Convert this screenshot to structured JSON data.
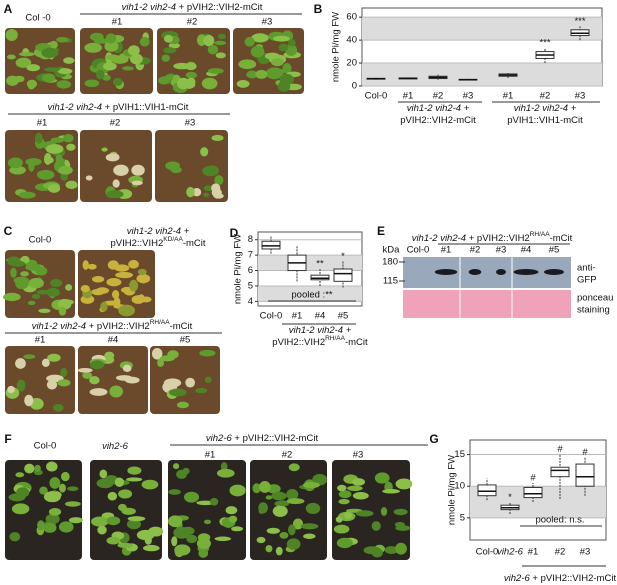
{
  "panels": {
    "A": {
      "label": "A",
      "col0": "Col -0",
      "row1": {
        "genotype": "vih1-2 vih2-4",
        "construct": " + pVIH2::VIH2-mCit",
        "lines": [
          "#1",
          "#2",
          "#3"
        ]
      },
      "row2": {
        "genotype": "vih1-2 vih2-4",
        "construct": " + pVIH1::VIH1-mCit",
        "lines": [
          "#1",
          "#2",
          "#3"
        ]
      }
    },
    "C": {
      "label": "C",
      "col0": "Col-0",
      "kd": {
        "genotype": "vih1-2 vih2-4 +",
        "construct": "pVIH2::VIH2",
        "sup": "KD/AA",
        "suffix": "-mCit"
      },
      "row2": {
        "genotype": "vih1-2 vih2-4",
        "construct": " + pVIH2::VIH2",
        "sup": "RH/AA",
        "suffix": "-mCit",
        "lines": [
          "#1",
          "#4",
          "#5"
        ]
      }
    },
    "E": {
      "label": "E",
      "genotype": "vih1-2 vih2-4",
      "construct": " + pVIH2::VIH2",
      "sup": "RH/AA",
      "suffix": "-mCit",
      "kda": "kDa",
      "lanes": [
        "Col-0",
        "#1",
        "#2",
        "#3",
        "#4",
        "#5"
      ],
      "markers": [
        "180",
        "115"
      ],
      "blots": [
        [
          "anti-",
          "GFP"
        ],
        [
          "ponceau",
          "staining"
        ]
      ]
    },
    "F": {
      "label": "F",
      "col0": "Col-0",
      "mutant": "vih2-6",
      "row": {
        "genotype": "vih2-6",
        "construct": " + pVIH2::VIH2-mCit",
        "lines": [
          "#1",
          "#2",
          "#3"
        ]
      }
    }
  },
  "chart_data": [
    {
      "type": "box",
      "label": "B",
      "ylabel": "nmole Pi/mg FW",
      "categories": [
        "Col-0",
        "#1",
        "#2",
        "#3",
        "#1",
        "#2",
        "#3"
      ],
      "min": [
        5.5,
        5.8,
        5.5,
        4.8,
        7,
        20,
        40
      ],
      "q1": [
        6,
        6.2,
        6.5,
        5.2,
        8.5,
        24,
        44
      ],
      "median": [
        6.3,
        6.6,
        7.5,
        5.5,
        9.5,
        27,
        46
      ],
      "q3": [
        6.7,
        7,
        8.5,
        5.8,
        10.5,
        30,
        49
      ],
      "max": [
        7,
        7.5,
        10,
        6.2,
        12,
        33,
        52
      ],
      "annotations": [
        null,
        null,
        null,
        null,
        null,
        "***",
        "***"
      ],
      "ylim": [
        0,
        68
      ],
      "yticks": [
        0,
        20,
        40,
        60
      ],
      "grid": true,
      "groups": [
        {
          "genotype": "vih1-2 vih2-4 +",
          "construct": "pVIH2::VIH2-mCit"
        },
        {
          "genotype": "vih1-2 vih2-4 +",
          "construct": "pVIH1::VIH1-mCit"
        }
      ]
    },
    {
      "type": "box",
      "label": "D",
      "ylabel": "nmole Pi/mg FW",
      "categories": [
        "Col-0",
        "#1",
        "#4",
        "#5"
      ],
      "min": [
        7.1,
        5.3,
        5.0,
        4.9
      ],
      "q1": [
        7.4,
        6.0,
        5.4,
        5.3
      ],
      "median": [
        7.6,
        6.5,
        5.5,
        5.8
      ],
      "q3": [
        7.9,
        7.0,
        5.7,
        6.1
      ],
      "max": [
        8.2,
        7.6,
        6.1,
        6.6
      ],
      "annotations": [
        null,
        null,
        "**",
        "*"
      ],
      "pooled": "pooled :**",
      "ylim": [
        3.7,
        8.5
      ],
      "yticks": [
        4,
        5,
        6,
        7,
        8
      ],
      "grid": true,
      "groups": [
        {
          "genotype": "vih1-2 vih2-4 +",
          "construct": "pVIH2::VIH2",
          "sup": "RH/AA",
          "suffix": "-mCit"
        }
      ]
    },
    {
      "type": "box",
      "label": "G",
      "ylabel": "nmole Pi/mg FW",
      "categories": [
        "Col-0",
        "vih2-6",
        "#1",
        "#2",
        "#3"
      ],
      "min": [
        7.8,
        5.6,
        7.5,
        8,
        8.5
      ],
      "q1": [
        8.5,
        6.3,
        8.2,
        11.5,
        10
      ],
      "median": [
        9.2,
        6.6,
        8.8,
        12.5,
        11.5
      ],
      "q3": [
        10.2,
        7.0,
        9.8,
        13,
        13.5
      ],
      "max": [
        11.2,
        7.4,
        10.5,
        15,
        14.5
      ],
      "annotations": [
        null,
        "*",
        "#",
        "#",
        "#"
      ],
      "pooled": "pooled: n.s.",
      "ylim": [
        1.5,
        17.3
      ],
      "yticks": [
        5,
        10,
        15
      ],
      "grid": true,
      "groups": [
        {
          "genotype": "vih2-6",
          "construct": " + pVIH2::VIH2-mCit"
        }
      ]
    }
  ]
}
